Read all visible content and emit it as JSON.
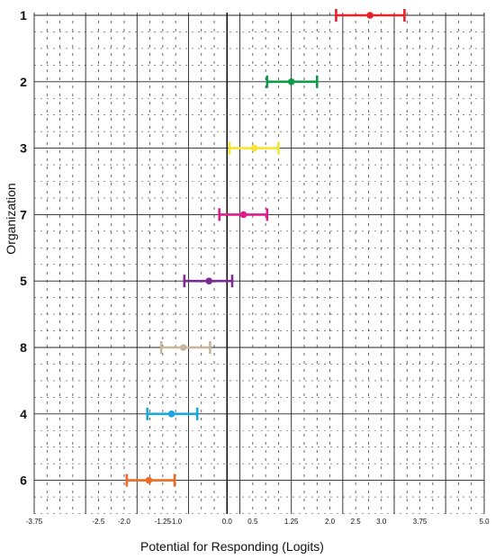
{
  "chart_data": {
    "type": "scatter",
    "title": "",
    "xlabel": "Potential for Responding (Logits)",
    "ylabel": "Organization",
    "xlim": [
      -3.75,
      5.0
    ],
    "x_tick_labels": [
      {
        "value": -3.75,
        "label": "-3.75"
      },
      {
        "value": -2.5,
        "label": "-2.5"
      },
      {
        "value": -2.0,
        "label": "-2.0"
      },
      {
        "value": -1.25,
        "label": "-1.25"
      },
      {
        "value": -1.0,
        "label": "-1.0"
      },
      {
        "value": 0.0,
        "label": "0.0"
      },
      {
        "value": 0.5,
        "label": "0.5"
      },
      {
        "value": 1.25,
        "label": "1.25"
      },
      {
        "value": 2.0,
        "label": "2.0"
      },
      {
        "value": 2.5,
        "label": "2.5"
      },
      {
        "value": 3.0,
        "label": "3.0"
      },
      {
        "value": 3.75,
        "label": "3.75"
      },
      {
        "value": 5.0,
        "label": "5.0"
      }
    ],
    "categories": [
      "1",
      "2",
      "3",
      "7",
      "5",
      "8",
      "4",
      "6"
    ],
    "series": [
      {
        "category": "1",
        "x": 2.78,
        "low": 2.12,
        "high": 3.45,
        "color": "#e8202a"
      },
      {
        "category": "2",
        "x": 1.25,
        "low": 0.78,
        "high": 1.75,
        "color": "#0f9a4a"
      },
      {
        "category": "3",
        "x": 0.53,
        "low": 0.05,
        "high": 1.0,
        "color": "#f7e531"
      },
      {
        "category": "7",
        "x": 0.32,
        "low": -0.15,
        "high": 0.78,
        "color": "#e0198f"
      },
      {
        "category": "5",
        "x": -0.35,
        "low": -0.83,
        "high": 0.1,
        "color": "#7b2b8f"
      },
      {
        "category": "8",
        "x": -0.85,
        "low": -1.28,
        "high": -0.33,
        "color": "#c7b79a"
      },
      {
        "category": "4",
        "x": -1.08,
        "low": -1.55,
        "high": -0.58,
        "color": "#1aa7e0"
      },
      {
        "category": "6",
        "x": -1.52,
        "low": -1.95,
        "high": -1.02,
        "color": "#ee6a22"
      }
    ],
    "grid": true
  }
}
